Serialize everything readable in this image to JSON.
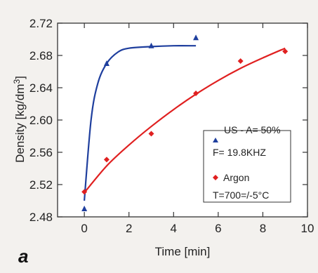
{
  "chart_data": {
    "type": "scatter",
    "panel_label": "a",
    "xlabel": "Time [min]",
    "ylabel": "Density [kg/dm³]",
    "ylabel_base": "Density [kg/dm",
    "ylabel_sup": "3",
    "ylabel_end": "]",
    "xlim": [
      -1.2,
      10
    ],
    "ylim": [
      2.48,
      2.72
    ],
    "xticks": [
      0,
      2,
      4,
      6,
      8,
      10
    ],
    "yticks": [
      2.48,
      2.52,
      2.56,
      2.6,
      2.64,
      2.68,
      2.72
    ],
    "xtick_labels": [
      "0",
      "2",
      "4",
      "6",
      "8",
      "10"
    ],
    "ytick_labels": [
      "2.48",
      "2.52",
      "2.56",
      "2.60",
      "2.64",
      "2.68",
      "2.72"
    ],
    "grid": false,
    "legend_position": "center-right",
    "legend": {
      "line1": "US - A= 50%",
      "line2": "F= 19.8KHZ",
      "line3": "Argon",
      "line4": "T=700=/-5°C"
    },
    "series": [
      {
        "name": "US - A= 50%",
        "marker": "triangle",
        "color": "#1f3f9e",
        "points": [
          [
            0,
            2.49
          ],
          [
            1,
            2.67
          ],
          [
            3,
            2.692
          ],
          [
            5,
            2.702
          ]
        ],
        "fit": [
          [
            0,
            2.5
          ],
          [
            0.3,
            2.6
          ],
          [
            0.6,
            2.645
          ],
          [
            1,
            2.67
          ],
          [
            1.5,
            2.684
          ],
          [
            2,
            2.689
          ],
          [
            3,
            2.691
          ],
          [
            4,
            2.692
          ],
          [
            5,
            2.692
          ]
        ]
      },
      {
        "name": "Argon",
        "marker": "diamond",
        "color": "#e02020",
        "points": [
          [
            0,
            2.511
          ],
          [
            1,
            2.551
          ],
          [
            3,
            2.583
          ],
          [
            5,
            2.633
          ],
          [
            7,
            2.673
          ],
          [
            9,
            2.685
          ]
        ],
        "fit": [
          [
            0,
            2.51
          ],
          [
            1,
            2.543
          ],
          [
            2,
            2.569
          ],
          [
            3,
            2.592
          ],
          [
            4,
            2.613
          ],
          [
            5,
            2.632
          ],
          [
            6,
            2.649
          ],
          [
            7,
            2.664
          ],
          [
            8,
            2.677
          ],
          [
            9,
            2.689
          ]
        ]
      }
    ]
  }
}
